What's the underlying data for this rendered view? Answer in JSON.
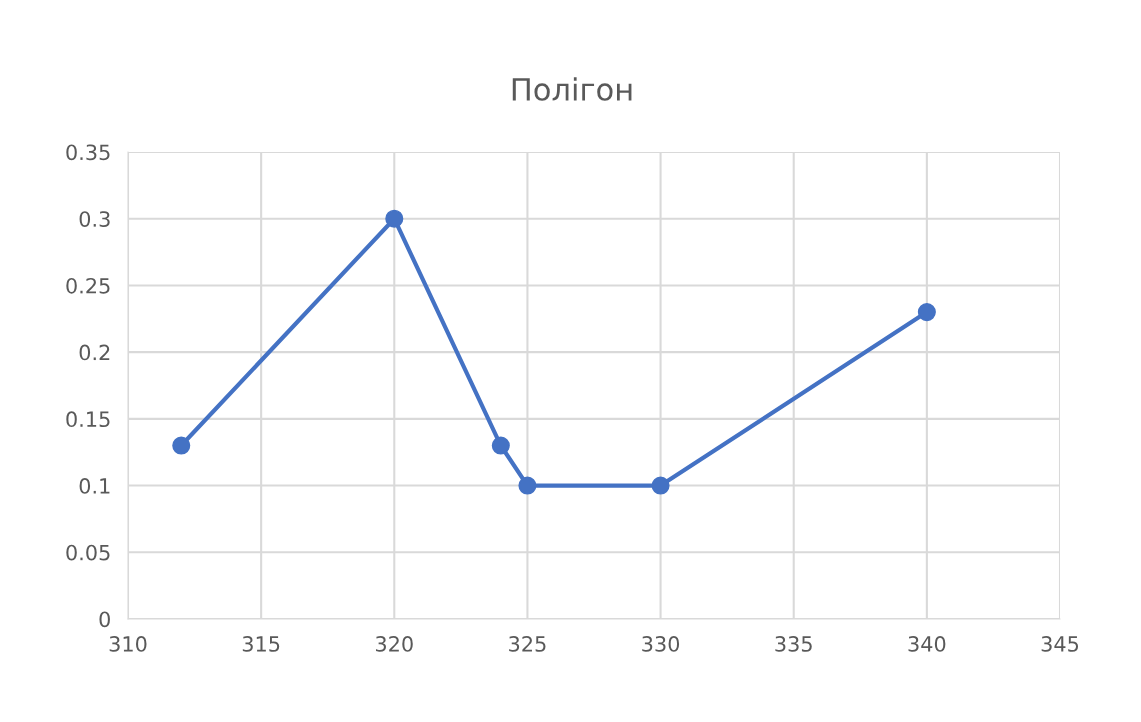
{
  "chart_data": {
    "type": "line",
    "title": "Полігон",
    "x": [
      312,
      320,
      324,
      325,
      330,
      340
    ],
    "series": [
      {
        "color": "#4472c4",
        "values": [
          0.13,
          0.3,
          0.13,
          0.1,
          0.1,
          0.23
        ]
      }
    ],
    "xlim": [
      310,
      345
    ],
    "xticks": [
      310,
      315,
      320,
      325,
      330,
      335,
      340,
      345
    ],
    "ylim": [
      0,
      0.35
    ],
    "yticks": [
      0,
      0.05,
      0.1,
      0.15,
      0.2,
      0.25,
      0.3,
      0.35
    ],
    "grid": true,
    "marker": "circle",
    "line_style": "solid",
    "legend": false
  }
}
